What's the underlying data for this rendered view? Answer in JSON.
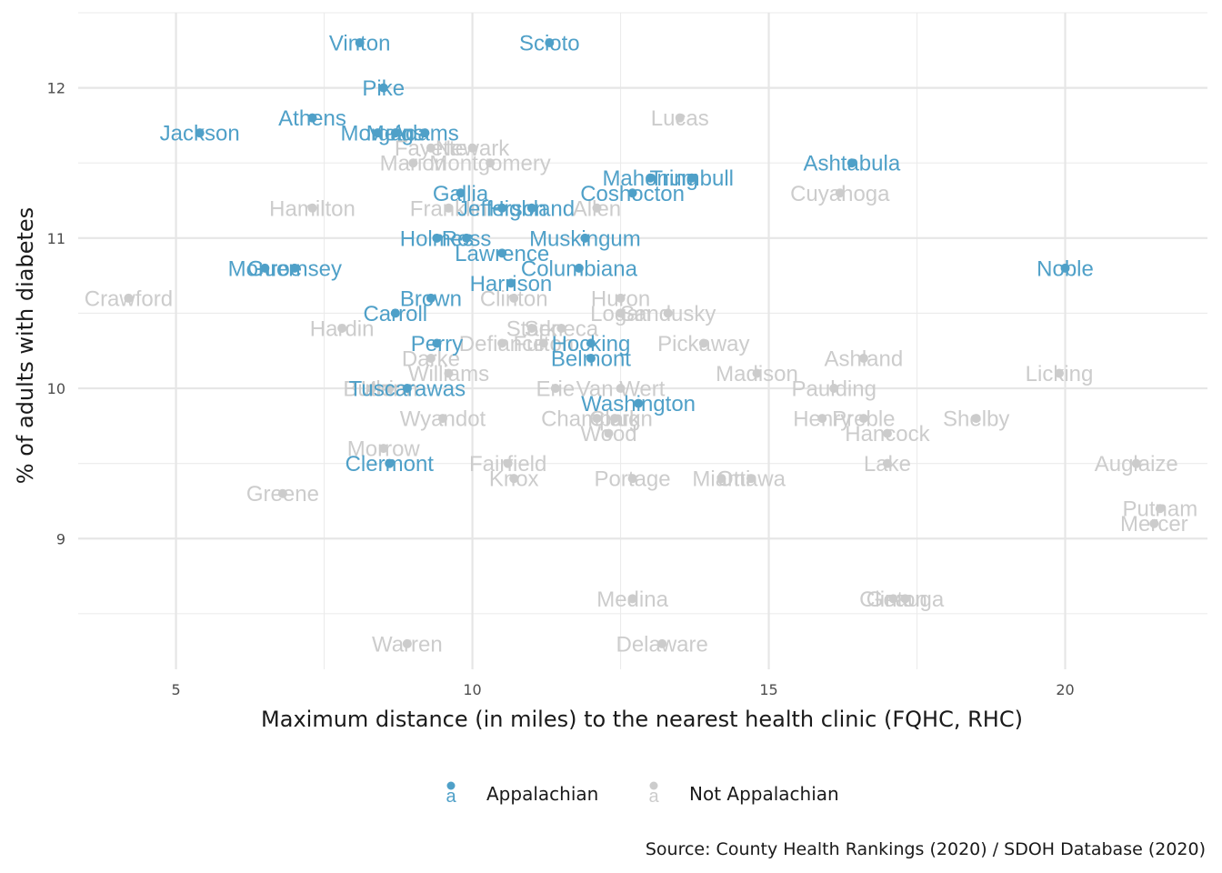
{
  "chart_data": {
    "type": "scatter",
    "xlabel": "Maximum distance (in miles) to the nearest health clinic (FQHC, RHC)",
    "ylabel": "% of adults with diabetes",
    "caption": "Source: County Health Rankings (2020) / SDOH Database (2020)",
    "xlim": [
      3.35,
      22.4
    ],
    "ylim": [
      8.13,
      12.5
    ],
    "x_ticks": [
      5,
      10,
      15,
      20
    ],
    "y_ticks": [
      9,
      10,
      11,
      12
    ],
    "grid": true,
    "legend_position": "bottom",
    "series": [
      {
        "name": "Appalachian",
        "color": "#4fa0c8",
        "legend_key": "a",
        "points": [
          {
            "label": "Vinton",
            "x": 8.1,
            "y": 12.3
          },
          {
            "label": "Scioto",
            "x": 11.3,
            "y": 12.3
          },
          {
            "label": "Pike",
            "x": 8.5,
            "y": 12.0
          },
          {
            "label": "Athens",
            "x": 7.3,
            "y": 11.8
          },
          {
            "label": "Jackson",
            "x": 5.4,
            "y": 11.7
          },
          {
            "label": "Morgan",
            "x": 8.4,
            "y": 11.7
          },
          {
            "label": "Meigs",
            "x": 8.7,
            "y": 11.7
          },
          {
            "label": "Adams",
            "x": 9.2,
            "y": 11.7
          },
          {
            "label": "Ashtabula",
            "x": 16.4,
            "y": 11.5
          },
          {
            "label": "Mahoning",
            "x": 13.0,
            "y": 11.4
          },
          {
            "label": "Trumbull",
            "x": 13.7,
            "y": 11.4
          },
          {
            "label": "Coshocton",
            "x": 12.7,
            "y": 11.3
          },
          {
            "label": "Gallia",
            "x": 9.8,
            "y": 11.3
          },
          {
            "label": "Jefferson",
            "x": 10.5,
            "y": 11.2
          },
          {
            "label": "Highland",
            "x": 11.0,
            "y": 11.2
          },
          {
            "label": "Holmes",
            "x": 9.4,
            "y": 11.0
          },
          {
            "label": "Ross",
            "x": 9.9,
            "y": 11.0
          },
          {
            "label": "Muskingum",
            "x": 11.9,
            "y": 11.0
          },
          {
            "label": "Lawrence",
            "x": 10.5,
            "y": 10.9
          },
          {
            "label": "Monroe",
            "x": 6.5,
            "y": 10.8
          },
          {
            "label": "Guernsey",
            "x": 7.0,
            "y": 10.8
          },
          {
            "label": "Columbiana",
            "x": 11.8,
            "y": 10.8
          },
          {
            "label": "Noble",
            "x": 20.0,
            "y": 10.8
          },
          {
            "label": "Harrison",
            "x": 10.65,
            "y": 10.7
          },
          {
            "label": "Brown",
            "x": 9.3,
            "y": 10.6
          },
          {
            "label": "Carroll",
            "x": 8.7,
            "y": 10.5
          },
          {
            "label": "Perry",
            "x": 9.4,
            "y": 10.3
          },
          {
            "label": "Hocking",
            "x": 12.0,
            "y": 10.3
          },
          {
            "label": "Belmont",
            "x": 12.0,
            "y": 10.2
          },
          {
            "label": "Tuscarawas",
            "x": 8.9,
            "y": 10.0
          },
          {
            "label": "Washington",
            "x": 12.8,
            "y": 9.9
          },
          {
            "label": "Clermont",
            "x": 8.6,
            "y": 9.5
          }
        ]
      },
      {
        "name": "Not Appalachian",
        "color": "#cccccc",
        "legend_key": "a",
        "points": [
          {
            "label": "Lucas",
            "x": 13.5,
            "y": 11.8
          },
          {
            "label": "Fayette",
            "x": 9.3,
            "y": 11.6
          },
          {
            "label": "Newark",
            "x": 10.0,
            "y": 11.6
          },
          {
            "label": "Marion",
            "x": 9.0,
            "y": 11.5
          },
          {
            "label": "Montgomery",
            "x": 10.3,
            "y": 11.5
          },
          {
            "label": "Cuyahoga",
            "x": 16.2,
            "y": 11.3
          },
          {
            "label": "Hamilton",
            "x": 7.3,
            "y": 11.2
          },
          {
            "label": "Franklin",
            "x": 9.6,
            "y": 11.2
          },
          {
            "label": "Allen",
            "x": 12.1,
            "y": 11.2
          },
          {
            "label": "Crawford",
            "x": 4.2,
            "y": 10.6
          },
          {
            "label": "Clinton",
            "x": 10.7,
            "y": 10.6
          },
          {
            "label": "Huron",
            "x": 12.5,
            "y": 10.6
          },
          {
            "label": "Logan",
            "x": 12.5,
            "y": 10.5
          },
          {
            "label": "Sandusky",
            "x": 13.3,
            "y": 10.5
          },
          {
            "label": "Hardin",
            "x": 7.8,
            "y": 10.4
          },
          {
            "label": "Stark",
            "x": 11.0,
            "y": 10.4
          },
          {
            "label": "Seneca",
            "x": 11.5,
            "y": 10.4
          },
          {
            "label": "Defiance",
            "x": 10.5,
            "y": 10.3
          },
          {
            "label": "Fulton",
            "x": 11.2,
            "y": 10.3
          },
          {
            "label": "Pickaway",
            "x": 13.9,
            "y": 10.3
          },
          {
            "label": "Darke",
            "x": 9.3,
            "y": 10.2
          },
          {
            "label": "Ashland",
            "x": 16.6,
            "y": 10.2
          },
          {
            "label": "Williams",
            "x": 9.6,
            "y": 10.1
          },
          {
            "label": "Madison",
            "x": 14.8,
            "y": 10.1
          },
          {
            "label": "Licking",
            "x": 19.9,
            "y": 10.1
          },
          {
            "label": "Butler",
            "x": 8.3,
            "y": 10.0
          },
          {
            "label": "Union",
            "x": 8.6,
            "y": 10.0
          },
          {
            "label": "Erie",
            "x": 11.4,
            "y": 10.0
          },
          {
            "label": "Van Wert",
            "x": 12.5,
            "y": 10.0
          },
          {
            "label": "Paulding",
            "x": 16.1,
            "y": 10.0
          },
          {
            "label": "Wyandot",
            "x": 9.5,
            "y": 9.8
          },
          {
            "label": "Champaign",
            "x": 12.1,
            "y": 9.8
          },
          {
            "label": "Clark",
            "x": 12.4,
            "y": 9.8
          },
          {
            "label": "Henry",
            "x": 15.9,
            "y": 9.8
          },
          {
            "label": "Preble",
            "x": 16.6,
            "y": 9.8
          },
          {
            "label": "Shelby",
            "x": 18.5,
            "y": 9.8
          },
          {
            "label": "Wood",
            "x": 12.3,
            "y": 9.7
          },
          {
            "label": "Hancock",
            "x": 17.0,
            "y": 9.7
          },
          {
            "label": "Morrow",
            "x": 8.5,
            "y": 9.6
          },
          {
            "label": "Fairfield",
            "x": 10.6,
            "y": 9.5
          },
          {
            "label": "Lake",
            "x": 17.0,
            "y": 9.5
          },
          {
            "label": "Auglaize",
            "x": 21.2,
            "y": 9.5
          },
          {
            "label": "Knox",
            "x": 10.7,
            "y": 9.4
          },
          {
            "label": "Portage",
            "x": 12.7,
            "y": 9.4
          },
          {
            "label": "Miami",
            "x": 14.2,
            "y": 9.4
          },
          {
            "label": "Ottawa",
            "x": 14.7,
            "y": 9.4
          },
          {
            "label": "Greene",
            "x": 6.8,
            "y": 9.3
          },
          {
            "label": "Putnam",
            "x": 21.6,
            "y": 9.2
          },
          {
            "label": "Mercer",
            "x": 21.5,
            "y": 9.1
          },
          {
            "label": "Medina",
            "x": 12.7,
            "y": 8.6
          },
          {
            "label": "Geauga",
            "x": 17.3,
            "y": 8.6
          },
          {
            "label": "Clinton",
            "x": 17.1,
            "y": 8.6
          },
          {
            "label": "Warren",
            "x": 8.9,
            "y": 8.3
          },
          {
            "label": "Delaware",
            "x": 13.2,
            "y": 8.3
          }
        ]
      }
    ]
  }
}
